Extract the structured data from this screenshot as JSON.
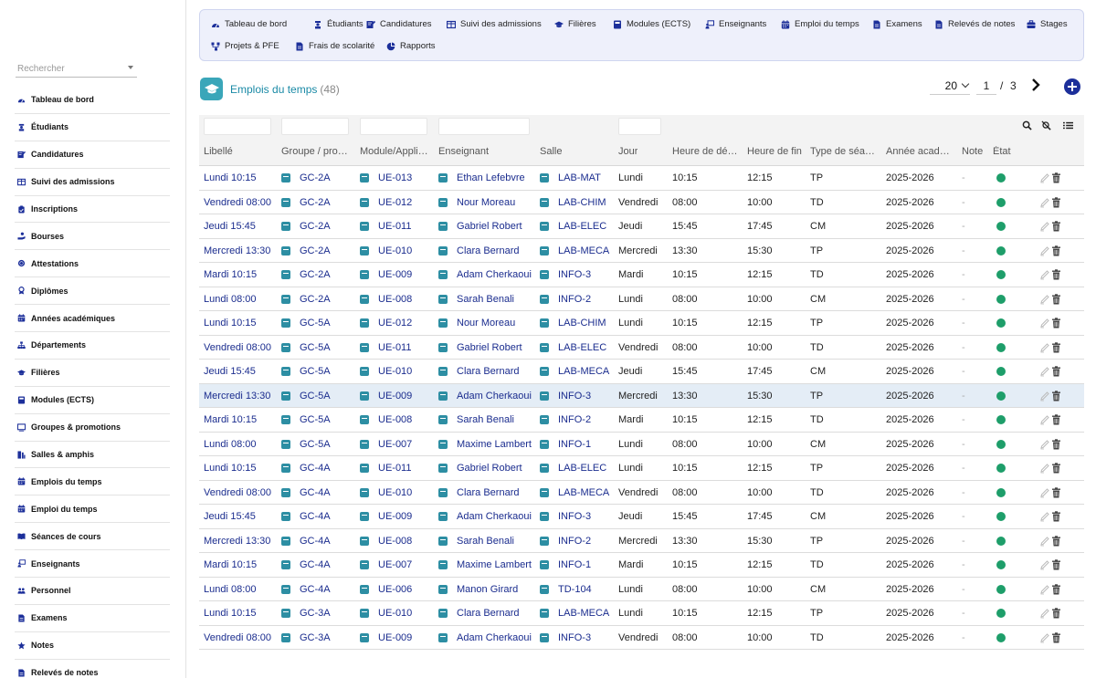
{
  "search": {
    "placeholder": "Rechercher"
  },
  "sidebar": {
    "items": [
      {
        "label": "Tableau de bord",
        "icon": "dashboard-icon"
      },
      {
        "label": "Étudiants",
        "icon": "student-icon"
      },
      {
        "label": "Candidatures",
        "icon": "application-icon"
      },
      {
        "label": "Suivi des admissions",
        "icon": "table-icon"
      },
      {
        "label": "Inscriptions",
        "icon": "clipboard-icon"
      },
      {
        "label": "Bourses",
        "icon": "hand-coin-icon"
      },
      {
        "label": "Attestations",
        "icon": "certificate-icon"
      },
      {
        "label": "Diplômes",
        "icon": "award-icon"
      },
      {
        "label": "Années académiques",
        "icon": "calendar-icon"
      },
      {
        "label": "Départements",
        "icon": "org-chart-icon"
      },
      {
        "label": "Filières",
        "icon": "graduation-cap-icon"
      },
      {
        "label": "Modules (ECTS)",
        "icon": "book-icon"
      },
      {
        "label": "Groupes & promotions",
        "icon": "screen-icon"
      },
      {
        "label": "Salles & amphis",
        "icon": "door-icon"
      },
      {
        "label": "Emplois du temps",
        "icon": "calendar-icon"
      },
      {
        "label": "Emploi du temps",
        "icon": "calendar-icon"
      },
      {
        "label": "Séances de cours",
        "icon": "open-book-icon"
      },
      {
        "label": "Enseignants",
        "icon": "teacher-icon"
      },
      {
        "label": "Personnel",
        "icon": "people-icon"
      },
      {
        "label": "Examens",
        "icon": "document-icon"
      },
      {
        "label": "Notes",
        "icon": "star-icon"
      },
      {
        "label": "Relevés de notes",
        "icon": "document-icon"
      }
    ]
  },
  "topnav": {
    "items": [
      {
        "label": "Tableau de bord",
        "icon": "dashboard-icon"
      },
      {
        "label": "Étudiants",
        "icon": "student-icon"
      },
      {
        "label": "Candidatures",
        "icon": "application-icon"
      },
      {
        "label": "Suivi des admissions",
        "icon": "table-icon"
      },
      {
        "label": "Filières",
        "icon": "graduation-cap-icon"
      },
      {
        "label": "Modules (ECTS)",
        "icon": "book-icon"
      },
      {
        "label": "Enseignants",
        "icon": "teacher-icon"
      },
      {
        "label": "Emploi du temps",
        "icon": "calendar-icon"
      },
      {
        "label": "Examens",
        "icon": "document-icon"
      },
      {
        "label": "Relevés de notes",
        "icon": "document-icon"
      },
      {
        "label": "Stages",
        "icon": "briefcase-icon"
      },
      {
        "label": "Projets & PFE",
        "icon": "project-icon"
      },
      {
        "label": "Frais de scolarité",
        "icon": "document-icon"
      },
      {
        "label": "Rapports",
        "icon": "pie-chart-icon"
      }
    ]
  },
  "page": {
    "title": "Emplois du temps",
    "count": "(48)"
  },
  "pager": {
    "page_size": "20",
    "current_page": "1",
    "separator": "/",
    "total_pages": "3"
  },
  "colors": {
    "accent": "#1a8aa6",
    "link": "#1a2c8e",
    "status_active": "#1e9e6a",
    "primary_button": "#1c2f9a"
  },
  "table": {
    "columns": [
      "Libellé",
      "Groupe / pro…",
      "Module/Appli…",
      "Enseignant",
      "Salle",
      "Jour",
      "Heure de dé…",
      "Heure de fin",
      "Type de séa…",
      "Année acad…",
      "Note",
      "État"
    ],
    "rows": [
      [
        "Lundi 10:15",
        "GC-2A",
        "UE-013",
        "Ethan Lefebvre",
        "LAB-MAT",
        "Lundi",
        "10:15",
        "12:15",
        "TP",
        "2025-2026",
        "-"
      ],
      [
        "Vendredi 08:00",
        "GC-2A",
        "UE-012",
        "Nour Moreau",
        "LAB-CHIM",
        "Vendredi",
        "08:00",
        "10:00",
        "TD",
        "2025-2026",
        "-"
      ],
      [
        "Jeudi 15:45",
        "GC-2A",
        "UE-011",
        "Gabriel Robert",
        "LAB-ELEC",
        "Jeudi",
        "15:45",
        "17:45",
        "CM",
        "2025-2026",
        "-"
      ],
      [
        "Mercredi 13:30",
        "GC-2A",
        "UE-010",
        "Clara Bernard",
        "LAB-MECA",
        "Mercredi",
        "13:30",
        "15:30",
        "TP",
        "2025-2026",
        "-"
      ],
      [
        "Mardi 10:15",
        "GC-2A",
        "UE-009",
        "Adam Cherkaoui",
        "INFO-3",
        "Mardi",
        "10:15",
        "12:15",
        "TD",
        "2025-2026",
        "-"
      ],
      [
        "Lundi 08:00",
        "GC-2A",
        "UE-008",
        "Sarah Benali",
        "INFO-2",
        "Lundi",
        "08:00",
        "10:00",
        "CM",
        "2025-2026",
        "-"
      ],
      [
        "Lundi 10:15",
        "GC-5A",
        "UE-012",
        "Nour Moreau",
        "LAB-CHIM",
        "Lundi",
        "10:15",
        "12:15",
        "TP",
        "2025-2026",
        "-"
      ],
      [
        "Vendredi 08:00",
        "GC-5A",
        "UE-011",
        "Gabriel Robert",
        "LAB-ELEC",
        "Vendredi",
        "08:00",
        "10:00",
        "TD",
        "2025-2026",
        "-"
      ],
      [
        "Jeudi 15:45",
        "GC-5A",
        "UE-010",
        "Clara Bernard",
        "LAB-MECA",
        "Jeudi",
        "15:45",
        "17:45",
        "CM",
        "2025-2026",
        "-"
      ],
      [
        "Mercredi 13:30",
        "GC-5A",
        "UE-009",
        "Adam Cherkaoui",
        "INFO-3",
        "Mercredi",
        "13:30",
        "15:30",
        "TP",
        "2025-2026",
        "-"
      ],
      [
        "Mardi 10:15",
        "GC-5A",
        "UE-008",
        "Sarah Benali",
        "INFO-2",
        "Mardi",
        "10:15",
        "12:15",
        "TD",
        "2025-2026",
        "-"
      ],
      [
        "Lundi 08:00",
        "GC-5A",
        "UE-007",
        "Maxime Lambert",
        "INFO-1",
        "Lundi",
        "08:00",
        "10:00",
        "CM",
        "2025-2026",
        "-"
      ],
      [
        "Lundi 10:15",
        "GC-4A",
        "UE-011",
        "Gabriel Robert",
        "LAB-ELEC",
        "Lundi",
        "10:15",
        "12:15",
        "TP",
        "2025-2026",
        "-"
      ],
      [
        "Vendredi 08:00",
        "GC-4A",
        "UE-010",
        "Clara Bernard",
        "LAB-MECA",
        "Vendredi",
        "08:00",
        "10:00",
        "TD",
        "2025-2026",
        "-"
      ],
      [
        "Jeudi 15:45",
        "GC-4A",
        "UE-009",
        "Adam Cherkaoui",
        "INFO-3",
        "Jeudi",
        "15:45",
        "17:45",
        "CM",
        "2025-2026",
        "-"
      ],
      [
        "Mercredi 13:30",
        "GC-4A",
        "UE-008",
        "Sarah Benali",
        "INFO-2",
        "Mercredi",
        "13:30",
        "15:30",
        "TP",
        "2025-2026",
        "-"
      ],
      [
        "Mardi 10:15",
        "GC-4A",
        "UE-007",
        "Maxime Lambert",
        "INFO-1",
        "Mardi",
        "10:15",
        "12:15",
        "TD",
        "2025-2026",
        "-"
      ],
      [
        "Lundi 08:00",
        "GC-4A",
        "UE-006",
        "Manon Girard",
        "TD-104",
        "Lundi",
        "08:00",
        "10:00",
        "CM",
        "2025-2026",
        "-"
      ],
      [
        "Lundi 10:15",
        "GC-3A",
        "UE-010",
        "Clara Bernard",
        "LAB-MECA",
        "Lundi",
        "10:15",
        "12:15",
        "TP",
        "2025-2026",
        "-"
      ],
      [
        "Vendredi 08:00",
        "GC-3A",
        "UE-009",
        "Adam Cherkaoui",
        "INFO-3",
        "Vendredi",
        "08:00",
        "10:00",
        "TD",
        "2025-2026",
        "-"
      ]
    ]
  }
}
